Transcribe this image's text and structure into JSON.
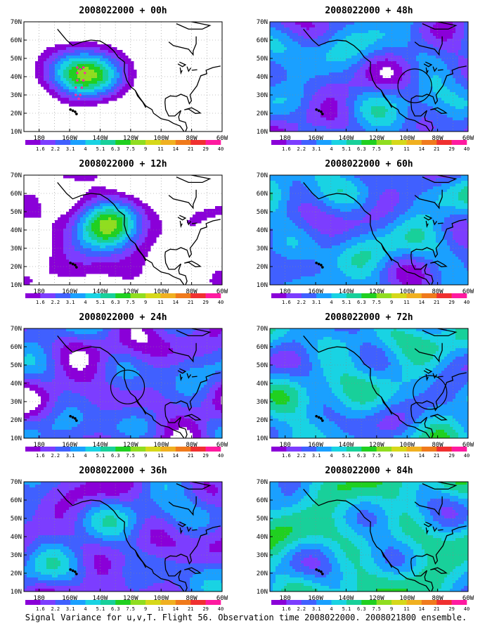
{
  "colors": {
    "levels": [
      "#8a00d8",
      "#7c3dff",
      "#4060ff",
      "#1aa0ff",
      "#19d3e3",
      "#18d09a",
      "#20d020",
      "#90dd20",
      "#d6d81a",
      "#f0b020",
      "#f07a1c",
      "#f03030",
      "#ff1aa0"
    ],
    "coast": "#000000",
    "grid": "#888888",
    "track": "#ff2aa0"
  },
  "axes": {
    "lat_labels": [
      "10N",
      "20N",
      "30N",
      "40N",
      "50N",
      "60N",
      "70N"
    ],
    "lon_labels": [
      "180",
      "160W",
      "140W",
      "120W",
      "100W",
      "80W",
      "60W"
    ]
  },
  "colorbar": {
    "labels": [
      "1.6",
      "2.2",
      "3.1",
      "4",
      "5.1",
      "6.3",
      "7.5",
      "9",
      "11",
      "14",
      "21",
      "29",
      "40"
    ]
  },
  "panels": [
    {
      "title": "2008022000 + 00h",
      "level": 0.55,
      "circle": null,
      "track": true
    },
    {
      "title": "2008022000 + 12h",
      "level": 0.6,
      "circle": null,
      "track": false
    },
    {
      "title": "2008022000 + 24h",
      "level": 0.65,
      "circle": {
        "lon": -122,
        "lat": 38
      },
      "track": false
    },
    {
      "title": "2008022000 + 36h",
      "level": 0.75,
      "circle": null,
      "track": false
    },
    {
      "title": "2008022000 + 48h",
      "level": 0.85,
      "circle": {
        "lon": -95,
        "lat": 35
      },
      "track": false
    },
    {
      "title": "2008022000 + 60h",
      "level": 0.95,
      "circle": null,
      "track": false
    },
    {
      "title": "2008022000 + 72h",
      "level": 1.1,
      "circle": {
        "lon": -85,
        "lat": 35
      },
      "track": false
    },
    {
      "title": "2008022000 + 84h",
      "level": 1.25,
      "circle": null,
      "track": false
    }
  ],
  "footer": "Signal Variance for u,v,T. Flight 56. Observation time 2008022000. 2008021800 ensemble."
}
